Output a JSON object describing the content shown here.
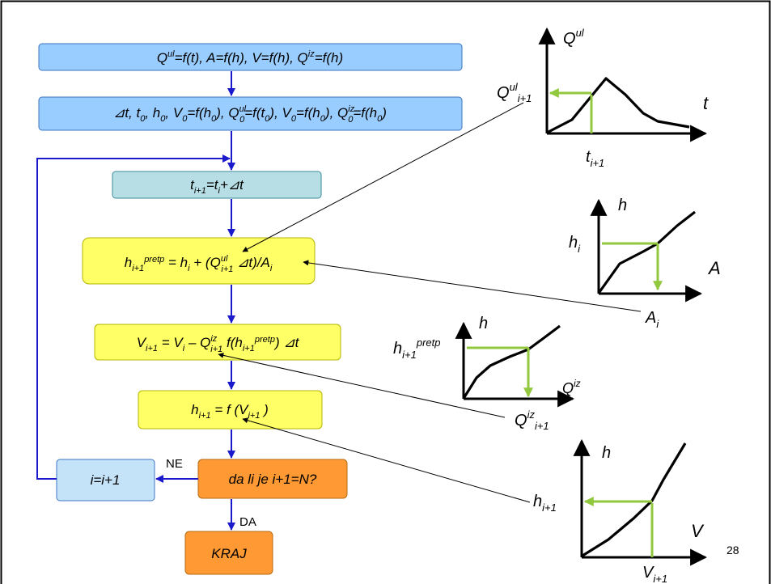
{
  "flowchart": {
    "box1": "Q^ul=f(t), A=f(h), V=f(h), Q^iz=f(h)",
    "box2": "⊿t, t_0, h_0, V_0=f(h_0), Q^ul_0=f(t_0), V_0=f(h_0), Q^iz_0=f(h_0)",
    "box3": "t_i+1=t_i+⊿t",
    "box4": "h_i+1^pretp = h_i + (Q^ul_i+1 ⊿t)/A_i",
    "box5": "V_i+1 = V_i – Q^iz_i+1 f(h_i+1^pretp) ⊿t",
    "box6": "h_i+1 = f (V_i+1 )",
    "decision": "da li je i+1=N?",
    "increment": "i=i+1",
    "end": "KRAJ",
    "label_no": "NE",
    "label_yes": "DA"
  },
  "graphs": {
    "inflow": {
      "y_label": "Q^ul",
      "x_label": "t",
      "marker_y": "Q^ul_i+1",
      "marker_x": "t_i+1"
    },
    "area": {
      "y_label": "h",
      "x_label": "A",
      "marker_y": "h_i",
      "marker_x": "A_i"
    },
    "outflow": {
      "y_label": "h",
      "x_label": "Q^iz",
      "marker_y": "h_i+1^pretp",
      "marker_x": "Q^iz_i+1"
    },
    "volume": {
      "y_label": "h",
      "x_label": "V",
      "marker_y": "h_i+1",
      "marker_x": "V_i+1"
    }
  },
  "page_number": "28",
  "colors": {
    "box_blue": "#99ccff",
    "box_teal": "#b7dee4",
    "box_yellow": "#ffff66",
    "box_orange": "#ff9933",
    "flow_arrow": "#1a1acc",
    "marker_green": "#92c83e"
  }
}
